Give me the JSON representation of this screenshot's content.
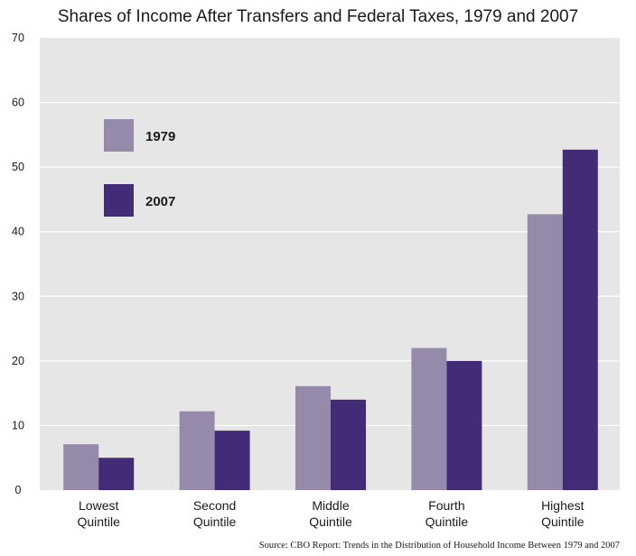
{
  "chart_data": {
    "type": "bar",
    "title": "Shares of Income After Transfers and Federal Taxes, 1979 and 2007",
    "categories": [
      [
        "Lowest",
        "Quintile"
      ],
      [
        "Second",
        "Quintile"
      ],
      [
        "Middle",
        "Quintile"
      ],
      [
        "Fourth",
        "Quintile"
      ],
      [
        "Highest",
        "Quintile"
      ]
    ],
    "series": [
      {
        "name": "1979",
        "color": "#968aab",
        "values": [
          7.1,
          12.2,
          16.1,
          22.0,
          42.7
        ]
      },
      {
        "name": "2007",
        "color": "#432b77",
        "values": [
          5.0,
          9.2,
          14.0,
          20.0,
          52.7
        ]
      }
    ],
    "ylim": [
      0,
      70
    ],
    "yticks": [
      0,
      10,
      20,
      30,
      40,
      50,
      60,
      70
    ],
    "grid": true,
    "legend": "top-left inside plot",
    "source": "Source: CBO Report: Trends in the Distribution of Household Income Between 1979 and 2007"
  }
}
